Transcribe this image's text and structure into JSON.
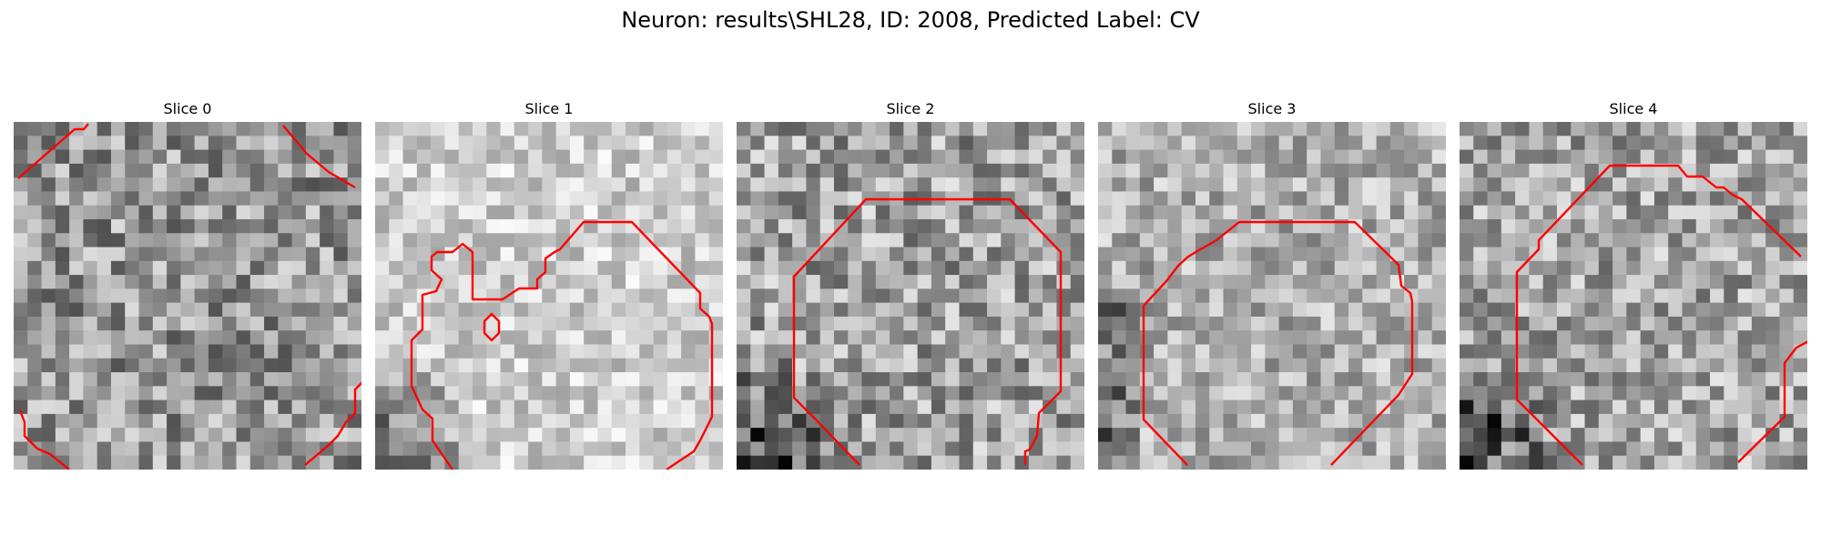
{
  "figure": {
    "title": "Neuron: results\\SHL28, ID: 2008, Predicted Label: CV"
  },
  "contour_color": "#ff0000",
  "panels": [
    {
      "title": "Slice 0",
      "seed": 11,
      "base": 150,
      "contrast": 70,
      "dark_corner": "none"
    },
    {
      "title": "Slice 1",
      "seed": 23,
      "base": 205,
      "contrast": 45,
      "dark_corner": "bottom-left"
    },
    {
      "title": "Slice 2",
      "seed": 37,
      "base": 160,
      "contrast": 70,
      "dark_corner": "bottom-left"
    },
    {
      "title": "Slice 3",
      "seed": 51,
      "base": 175,
      "contrast": 55,
      "dark_corner": "left"
    },
    {
      "title": "Slice 4",
      "seed": 67,
      "base": 165,
      "contrast": 65,
      "dark_corner": "bottom-left"
    }
  ]
}
